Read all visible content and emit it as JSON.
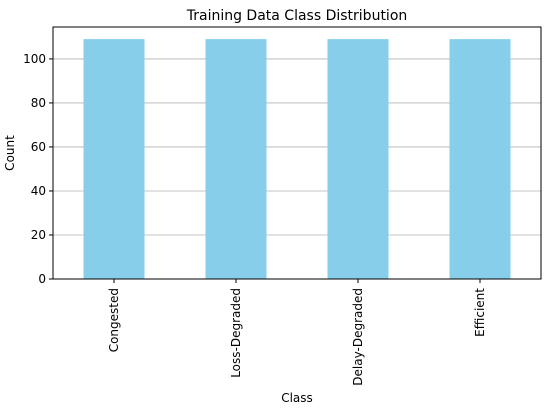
{
  "chart_data": {
    "type": "bar",
    "title": "Training Data Class Distribution",
    "xlabel": "Class",
    "ylabel": "Count",
    "categories": [
      "Congested",
      "Loss-Degraded",
      "Delay-Degraded",
      "Efficient"
    ],
    "values": [
      109,
      109,
      109,
      109
    ],
    "color": "#87ceeb",
    "ylim": [
      0,
      114.5
    ],
    "yticks": [
      0,
      20,
      40,
      60,
      80,
      100
    ],
    "grid": true
  }
}
